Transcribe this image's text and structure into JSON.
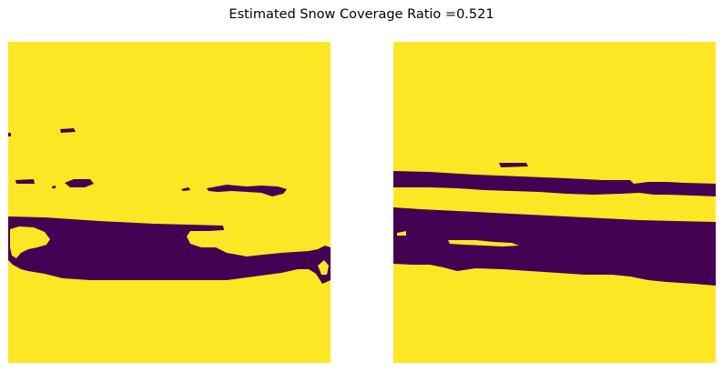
{
  "figure": {
    "title": "Estimated Snow Coverage Ratio =0.521"
  },
  "colors": {
    "snow": "#fde725",
    "no_snow": "#440154",
    "background": "#ffffff"
  },
  "panels": [
    {
      "name": "left-mask",
      "description_role": "binary snow mask"
    },
    {
      "name": "right-mask",
      "description_role": "binary snow mask"
    }
  ]
}
